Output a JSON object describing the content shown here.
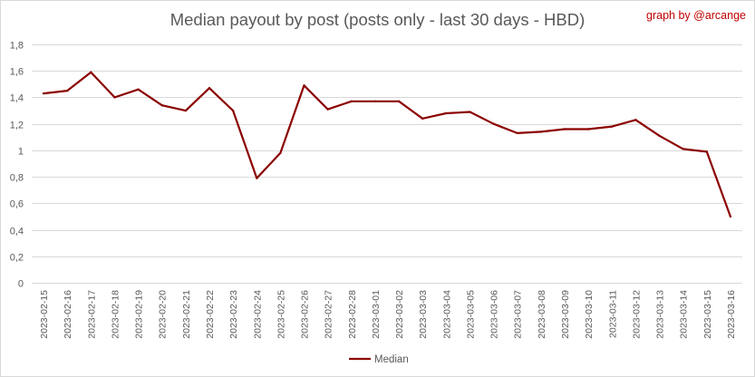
{
  "chart_data": {
    "type": "line",
    "title": "Median payout by post (posts only - last 30 days - HBD)",
    "credit": "graph by @arcange",
    "xlabel": "",
    "ylabel": "",
    "ylim": [
      0,
      1.8
    ],
    "yticks": [
      "0",
      "0,2",
      "0,4",
      "0,6",
      "0,8",
      "1",
      "1,2",
      "1,4",
      "1,6",
      "1,8"
    ],
    "grid": true,
    "legend_position": "bottom",
    "categories": [
      "2023-02-15",
      "2023-02-16",
      "2023-02-17",
      "2023-02-18",
      "2023-02-19",
      "2023-02-20",
      "2023-02-21",
      "2023-02-22",
      "2023-02-23",
      "2023-02-24",
      "2023-02-25",
      "2023-02-26",
      "2023-02-27",
      "2023-02-28",
      "2023-03-01",
      "2023-03-02",
      "2023-03-03",
      "2023-03-04",
      "2023-03-05",
      "2023-03-06",
      "2023-03-07",
      "2023-03-08",
      "2023-03-09",
      "2023-03-10",
      "2023-03-11",
      "2023-03-12",
      "2023-03-13",
      "2023-03-14",
      "2023-03-15",
      "2023-03-16"
    ],
    "series": [
      {
        "name": "Median",
        "color": "#8b0000",
        "values": [
          1.43,
          1.45,
          1.59,
          1.4,
          1.46,
          1.34,
          1.3,
          1.47,
          1.3,
          0.79,
          0.98,
          1.49,
          1.31,
          1.37,
          1.37,
          1.37,
          1.24,
          1.28,
          1.29,
          1.2,
          1.13,
          1.14,
          1.16,
          1.16,
          1.18,
          1.23,
          1.11,
          1.01,
          0.99,
          0.5
        ]
      }
    ]
  }
}
